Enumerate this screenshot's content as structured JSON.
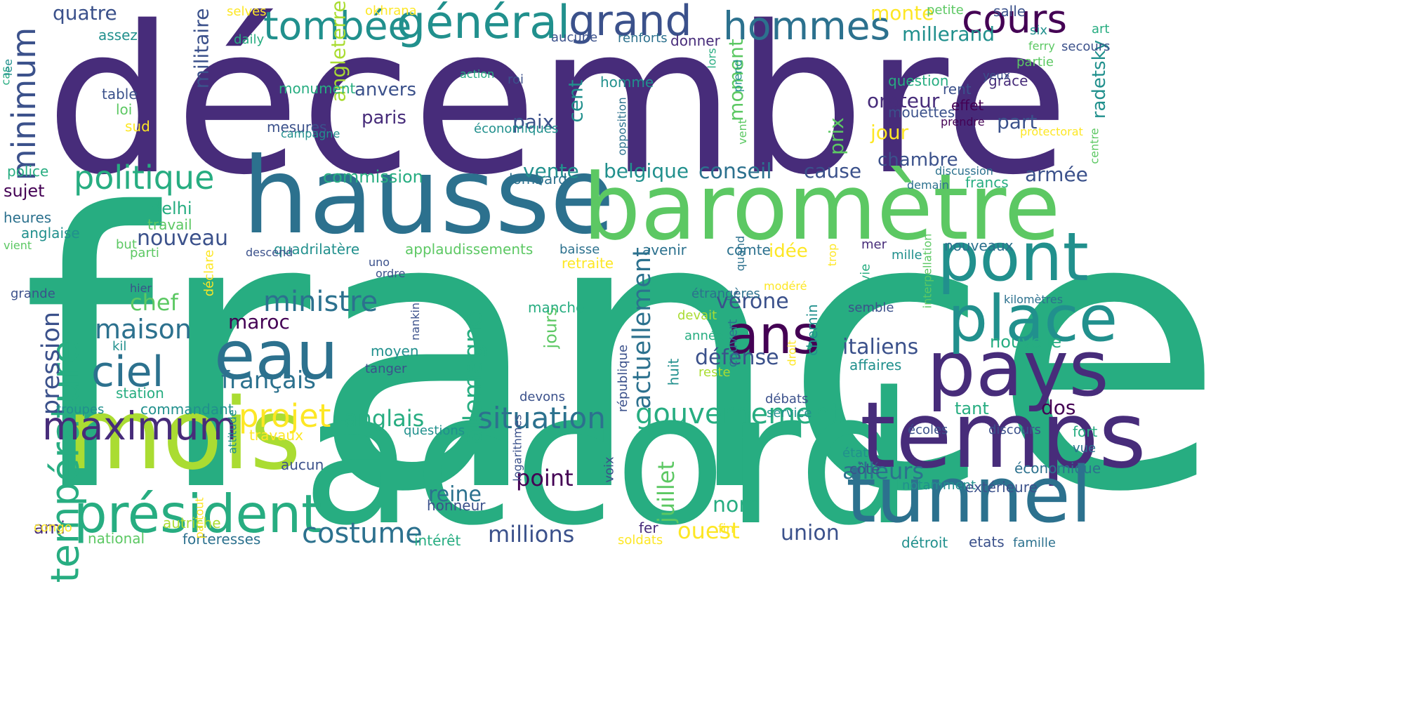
{
  "palette": [
    "#440154",
    "#472c7a",
    "#3b518b",
    "#2c718e",
    "#21908d",
    "#27ad81",
    "#5cc863",
    "#aadc32",
    "#fde725"
  ],
  "words": [
    {
      "text": "décembre",
      "c": 1
    },
    {
      "text": "france",
      "c": 5
    },
    {
      "text": "accord",
      "c": 5
    },
    {
      "text": "hausse",
      "c": 3
    },
    {
      "text": "baromètre",
      "c": 6
    },
    {
      "text": "mois",
      "c": 7
    },
    {
      "text": "temps",
      "c": 1
    },
    {
      "text": "pays",
      "c": 1
    },
    {
      "text": "tunnel",
      "c": 3
    },
    {
      "text": "pont",
      "c": 4
    },
    {
      "text": "place",
      "c": 4
    },
    {
      "text": "eau",
      "c": 3
    },
    {
      "text": "ans",
      "c": 0
    },
    {
      "text": "président",
      "c": 5
    },
    {
      "text": "température",
      "c": 5
    },
    {
      "text": "maximum",
      "c": 1
    },
    {
      "text": "ciel",
      "c": 3
    },
    {
      "text": "général",
      "c": 4
    },
    {
      "text": "grand",
      "c": 2
    },
    {
      "text": "tombée",
      "c": 4
    },
    {
      "text": "hommes",
      "c": 3
    },
    {
      "text": "cours",
      "c": 0
    },
    {
      "text": "minimum",
      "c": 2
    },
    {
      "text": "politique",
      "c": 5
    },
    {
      "text": "projet",
      "c": 8
    },
    {
      "text": "situation",
      "c": 3
    },
    {
      "text": "gouvernement",
      "c": 5
    },
    {
      "text": "costume",
      "c": 3
    },
    {
      "text": "ministre",
      "c": 3
    },
    {
      "text": "maison",
      "c": 3
    },
    {
      "text": "allemagne",
      "c": 5
    },
    {
      "text": "actuellement",
      "c": 3
    },
    {
      "text": "pression",
      "c": 2
    },
    {
      "text": "juillet",
      "c": 6
    },
    {
      "text": "ailleurs",
      "c": 3
    },
    {
      "text": "italiens",
      "c": 2
    },
    {
      "text": "français",
      "c": 3
    },
    {
      "text": "anglais",
      "c": 5
    },
    {
      "text": "millions",
      "c": 2
    },
    {
      "text": "ouest",
      "c": 8
    },
    {
      "text": "union",
      "c": 2
    },
    {
      "text": "point",
      "c": 0
    },
    {
      "text": "reine",
      "c": 3
    },
    {
      "text": "nord",
      "c": 5
    },
    {
      "text": "défense",
      "c": 2
    },
    {
      "text": "vérone",
      "c": 2
    },
    {
      "text": "chef",
      "c": 6
    },
    {
      "text": "nouveau",
      "c": 2
    },
    {
      "text": "maroc",
      "c": 0
    },
    {
      "text": "vente",
      "c": 4
    },
    {
      "text": "belgique",
      "c": 4
    },
    {
      "text": "conseil",
      "c": 3
    },
    {
      "text": "cause",
      "c": 2
    },
    {
      "text": "chambre",
      "c": 2
    },
    {
      "text": "armée",
      "c": 2
    },
    {
      "text": "orateur",
      "c": 1
    },
    {
      "text": "part",
      "c": 2
    },
    {
      "text": "jour",
      "c": 8
    },
    {
      "text": "prix",
      "c": 6
    },
    {
      "text": "moment",
      "c": 6
    },
    {
      "text": "paix",
      "c": 2
    },
    {
      "text": "cent",
      "c": 4
    },
    {
      "text": "anvers",
      "c": 2
    },
    {
      "text": "paris",
      "c": 1
    },
    {
      "text": "millerand",
      "c": 4
    },
    {
      "text": "monte",
      "c": 8
    },
    {
      "text": "quatre",
      "c": 2
    },
    {
      "text": "militaire",
      "c": 2
    },
    {
      "text": "angleterre",
      "c": 7
    },
    {
      "text": "commission",
      "c": 5
    },
    {
      "text": "delhi",
      "c": 5
    },
    {
      "text": "sujet",
      "c": 0
    },
    {
      "text": "idée",
      "c": 8
    },
    {
      "text": "nouvelle",
      "c": 5
    },
    {
      "text": "radetsky",
      "c": 4
    },
    {
      "text": "dos",
      "c": 0
    },
    {
      "text": "tant",
      "c": 5
    },
    {
      "text": "jours",
      "c": 6
    },
    {
      "text": "ami",
      "c": 1
    },
    {
      "text": "affaires",
      "c": 4
    },
    {
      "text": "heures",
      "c": 3
    },
    {
      "text": "travail",
      "c": 6
    },
    {
      "text": "quadrilatère",
      "c": 4
    },
    {
      "text": "applaudissements",
      "c": 6
    },
    {
      "text": "baisse",
      "c": 3
    },
    {
      "text": "avenir",
      "c": 3
    },
    {
      "text": "comte",
      "c": 3
    },
    {
      "text": "mer",
      "c": 1
    },
    {
      "text": "mille",
      "c": 4
    },
    {
      "text": "nouveaux",
      "c": 3
    },
    {
      "text": "francs",
      "c": 5
    },
    {
      "text": "question",
      "c": 5
    },
    {
      "text": "mouettes",
      "c": 2
    },
    {
      "text": "grâce",
      "c": 1
    },
    {
      "text": "station",
      "c": 5
    },
    {
      "text": "commandant",
      "c": 4
    },
    {
      "text": "travaux",
      "c": 8
    },
    {
      "text": "aucun",
      "c": 2
    },
    {
      "text": "honneur",
      "c": 2
    },
    {
      "text": "forteresses",
      "c": 3
    },
    {
      "text": "intérêt",
      "c": 5
    },
    {
      "text": "national",
      "c": 6
    },
    {
      "text": "congo",
      "c": 8
    },
    {
      "text": "fer",
      "c": 1
    },
    {
      "text": "soldats",
      "c": 8
    },
    {
      "text": "fin",
      "c": 8
    },
    {
      "text": "détroit",
      "c": 4
    },
    {
      "text": "etats",
      "c": 2
    },
    {
      "text": "famille",
      "c": 3
    },
    {
      "text": "notamment",
      "c": 4
    },
    {
      "text": "extérieure",
      "c": 2
    },
    {
      "text": "économique",
      "c": 3
    },
    {
      "text": "vue",
      "c": 3
    },
    {
      "text": "fort",
      "c": 5
    },
    {
      "text": "côté",
      "c": 2
    },
    {
      "text": "état",
      "c": 4
    },
    {
      "text": "écoles",
      "c": 2
    },
    {
      "text": "discours",
      "c": 2
    },
    {
      "text": "service",
      "c": 4
    },
    {
      "text": "débats",
      "c": 2
    },
    {
      "text": "reste",
      "c": 7
    },
    {
      "text": "année",
      "c": 5
    },
    {
      "text": "devait",
      "c": 7
    },
    {
      "text": "étrangères",
      "c": 3
    },
    {
      "text": "semble",
      "c": 2
    },
    {
      "text": "kilomètres",
      "c": 3
    },
    {
      "text": "manche",
      "c": 5
    },
    {
      "text": "modéré",
      "c": 8
    },
    {
      "text": "moyen",
      "c": 4
    },
    {
      "text": "tanger",
      "c": 2
    },
    {
      "text": "huit",
      "c": 4
    },
    {
      "text": "couvert",
      "c": 3
    },
    {
      "text": "devons",
      "c": 2
    },
    {
      "text": "république",
      "c": 2
    },
    {
      "text": "nankin",
      "c": 2
    },
    {
      "text": "voix",
      "c": 2
    },
    {
      "text": "logarithmes",
      "c": 2
    },
    {
      "text": "partout",
      "c": 8
    },
    {
      "text": "autriche",
      "c": 7
    },
    {
      "text": "questions",
      "c": 4
    },
    {
      "text": "attitude",
      "c": 4
    },
    {
      "text": "troupes",
      "c": 4
    },
    {
      "text": "kil",
      "c": 4
    },
    {
      "text": "grande",
      "c": 2
    },
    {
      "text": "hier",
      "c": 2
    },
    {
      "text": "déclare",
      "c": 8
    },
    {
      "text": "parti",
      "c": 6
    },
    {
      "text": "but",
      "c": 6
    },
    {
      "text": "descend",
      "c": 2
    },
    {
      "text": "uno",
      "c": 2
    },
    {
      "text": "ordre",
      "c": 2
    },
    {
      "text": "retraite",
      "c": 8
    },
    {
      "text": "vient",
      "c": 6
    },
    {
      "text": "anglaise",
      "c": 4
    },
    {
      "text": "police",
      "c": 5
    },
    {
      "text": "table",
      "c": 2
    },
    {
      "text": "loi",
      "c": 6
    },
    {
      "text": "sud",
      "c": 8
    },
    {
      "text": "assez",
      "c": 4
    },
    {
      "text": "daily",
      "c": 5
    },
    {
      "text": "selves",
      "c": 8
    },
    {
      "text": "okhrana",
      "c": 8
    },
    {
      "text": "salle",
      "c": 2
    },
    {
      "text": "petite",
      "c": 6
    },
    {
      "text": "art",
      "c": 5
    },
    {
      "text": "six",
      "c": 4
    },
    {
      "text": "secours",
      "c": 2
    },
    {
      "text": "ferry",
      "c": 6
    },
    {
      "text": "partie",
      "c": 6
    },
    {
      "text": "yeux",
      "c": 2
    },
    {
      "text": "aucune",
      "c": 2
    },
    {
      "text": "renforts",
      "c": 3
    },
    {
      "text": "donner",
      "c": 1
    },
    {
      "text": "lors",
      "c": 5
    },
    {
      "text": "prend",
      "c": 4
    },
    {
      "text": "action",
      "c": 5
    },
    {
      "text": "roi",
      "c": 2
    },
    {
      "text": "homme",
      "c": 4
    },
    {
      "text": "monument",
      "c": 5
    },
    {
      "text": "mesures",
      "c": 2
    },
    {
      "text": "campagne",
      "c": 4
    },
    {
      "text": "économiques",
      "c": 4
    },
    {
      "text": "opposition",
      "c": 3
    },
    {
      "text": "vent",
      "c": 6
    },
    {
      "text": "rent",
      "c": 2
    },
    {
      "text": "effet",
      "c": 0
    },
    {
      "text": "prendre",
      "c": 0
    },
    {
      "text": "protectorat",
      "c": 8
    },
    {
      "text": "centre",
      "c": 6
    },
    {
      "text": "discussion",
      "c": 3
    },
    {
      "text": "demain",
      "c": 3
    },
    {
      "text": "lombard",
      "c": 3
    },
    {
      "text": "quand",
      "c": 3
    },
    {
      "text": "trop",
      "c": 8
    },
    {
      "text": "vie",
      "c": 5
    },
    {
      "text": "interpellation",
      "c": 6
    },
    {
      "text": "droit",
      "c": 8
    },
    {
      "text": "chemin",
      "c": 4
    },
    {
      "text": "cas",
      "c": 5
    },
    {
      "text": "lee",
      "c": 4
    }
  ]
}
